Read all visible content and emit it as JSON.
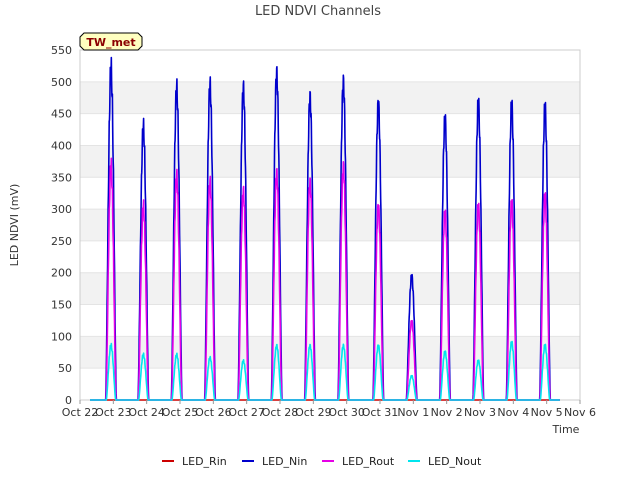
{
  "chart_data": {
    "type": "line",
    "title": "LED NDVI Channels",
    "xlabel": "Time",
    "ylabel": "LED NDVI (mV)",
    "ylim": [
      0,
      550
    ],
    "yticks": [
      0,
      50,
      100,
      150,
      200,
      250,
      300,
      350,
      400,
      450,
      500,
      550
    ],
    "xlim": [
      0,
      15
    ],
    "xticks": [
      "Oct 22",
      "Oct 23",
      "Oct 24",
      "Oct 25",
      "Oct 26",
      "Oct 27",
      "Oct 28",
      "Oct 29",
      "Oct 30",
      "Oct 31",
      "Nov 1",
      "Nov 2",
      "Nov 3",
      "Nov 4",
      "Nov 5",
      "Nov 6"
    ],
    "grid": "horizontal bands",
    "legend_position": "bottom",
    "badge": "TW_met",
    "colors": {
      "LED_Rin": "#cc0000",
      "LED_Nin": "#0000cc",
      "LED_Rout": "#e600e6",
      "LED_Nout": "#00e5ee"
    },
    "day_centers": [
      0.93,
      1.9,
      2.9,
      3.9,
      4.9,
      5.9,
      6.9,
      7.9,
      8.95,
      9.95,
      10.95,
      11.95,
      12.95,
      13.95
    ],
    "series": [
      {
        "name": "LED_Rin",
        "daily_peaks": [
          0,
          0,
          0,
          0,
          0,
          0,
          0,
          0,
          0,
          0,
          0,
          0,
          0,
          0
        ]
      },
      {
        "name": "LED_Nin",
        "daily_peaks": [
          545,
          450,
          515,
          520,
          515,
          540,
          500,
          525,
          490,
          205,
          465,
          490,
          485,
          480
        ]
      },
      {
        "name": "LED_Rout",
        "daily_peaks": [
          385,
          320,
          370,
          360,
          345,
          375,
          360,
          385,
          320,
          130,
          310,
          320,
          325,
          335
        ]
      },
      {
        "name": "LED_Nout",
        "daily_peaks": [
          90,
          75,
          75,
          70,
          65,
          90,
          90,
          90,
          90,
          40,
          80,
          65,
          95,
          90
        ]
      }
    ]
  }
}
